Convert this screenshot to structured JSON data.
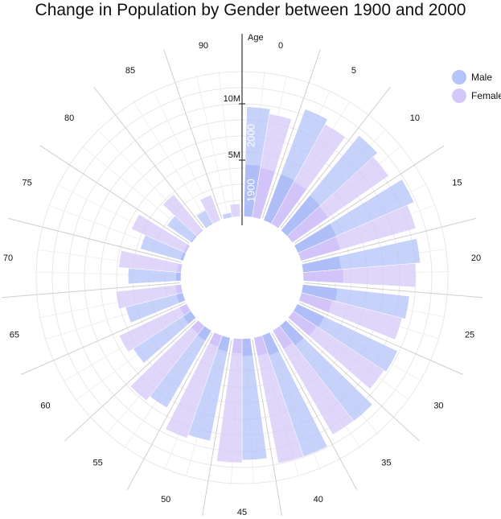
{
  "chart_data": {
    "type": "radial-bar",
    "title": "Change in Population by Gender between 1900 and 2000",
    "axis_label": "Age",
    "scale_ticks": [
      {
        "value": 5000000,
        "label": "5M"
      },
      {
        "value": 10000000,
        "label": "10M"
      }
    ],
    "year_labels": [
      "1900",
      "2000"
    ],
    "categories": [
      0,
      5,
      10,
      15,
      20,
      25,
      30,
      35,
      40,
      45,
      50,
      55,
      60,
      65,
      70,
      75,
      80,
      85,
      90
    ],
    "legend": [
      {
        "name": "Male",
        "color": "#b4c3f8"
      },
      {
        "name": "Female",
        "color": "#d5c8f8"
      }
    ],
    "series": [
      {
        "year": "1900",
        "sex": "Male",
        "values": [
          4620000,
          4380000,
          4010000,
          3720000,
          3400000,
          3120000,
          2670000,
          2220000,
          1900000,
          1560000,
          1280000,
          1060000,
          840000,
          620000,
          450000,
          270000,
          130000,
          60000,
          20000
        ]
      },
      {
        "year": "1900",
        "sex": "Female",
        "values": [
          4450000,
          4240000,
          3900000,
          3650000,
          3580000,
          2840000,
          2480000,
          1900000,
          1650000,
          1310000,
          1080000,
          900000,
          700000,
          520000,
          380000,
          240000,
          120000,
          50000,
          20000
        ]
      },
      {
        "year": "2000",
        "sex": "Male",
        "values": [
          9740000,
          10550000,
          10920000,
          11240000,
          10460000,
          9530000,
          9850000,
          10730000,
          11370000,
          10770000,
          9340000,
          7920000,
          6130000,
          5240000,
          4690000,
          3960000,
          2680000,
          1370000,
          430000
        ]
      },
      {
        "year": "2000",
        "sex": "Female",
        "values": [
          9310000,
          10050000,
          10420000,
          10620000,
          10020000,
          9240000,
          9630000,
          10680000,
          11370000,
          11010000,
          9640000,
          8410000,
          6640000,
          5840000,
          5560000,
          5300000,
          4130000,
          2410000,
          1130000
        ]
      }
    ]
  }
}
